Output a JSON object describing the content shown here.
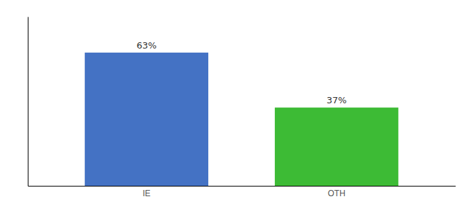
{
  "chart_data": {
    "type": "bar",
    "categories": [
      "IE",
      "OTH"
    ],
    "values": [
      63,
      37
    ],
    "value_labels": [
      "63%",
      "37%"
    ],
    "colors": [
      "#4472c4",
      "#3dbb35"
    ],
    "ylim": [
      0,
      80
    ],
    "data_labels": true,
    "tick_labels": "x"
  }
}
